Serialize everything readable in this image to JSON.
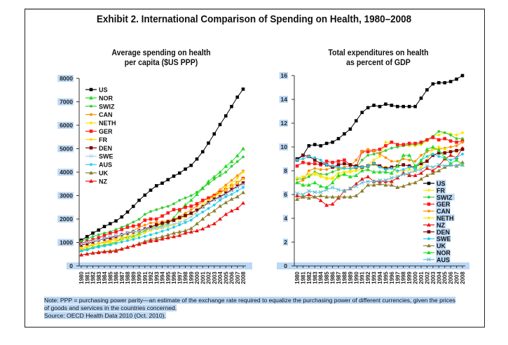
{
  "title": "Exhibit 2. International Comparison of Spending on Health, 1980–2008",
  "note_lines": [
    "Note: PPP = purchasing power parity—an estimate of the exchange rate required to equalize the purchasing power of different currencies, given the prices",
    "of goods and services in the countries concerned.",
    "Source: OECD Health Data 2010 (Oct. 2010)."
  ],
  "chart_data": [
    {
      "type": "line",
      "title": "Average spending on health per capita ($US PPP)",
      "title_lines": [
        "Average spending on health",
        "per capita ($US PPP)"
      ],
      "xlabel": "",
      "ylabel": "",
      "ylim": [
        0,
        8000
      ],
      "yticks": [
        "0",
        "1000",
        "2000",
        "3000",
        "4000",
        "5000",
        "6000",
        "7000",
        "8000"
      ],
      "x": [
        "1980",
        "1981",
        "1982",
        "1983",
        "1984",
        "1985",
        "1986",
        "1987",
        "1988",
        "1989",
        "1990",
        "1991",
        "1992",
        "1993",
        "1994",
        "1995",
        "1996",
        "1997",
        "1998",
        "1999",
        "2000",
        "2001",
        "2002",
        "2003",
        "2004",
        "2005",
        "2006",
        "2007",
        "2008"
      ],
      "legend_position": "top-left",
      "series": [
        {
          "name": "US",
          "color": "#000000",
          "marker": "square",
          "values": [
            1100,
            1250,
            1400,
            1530,
            1680,
            1800,
            1920,
            2090,
            2300,
            2540,
            2800,
            3020,
            3230,
            3420,
            3530,
            3680,
            3830,
            3960,
            4130,
            4290,
            4560,
            4870,
            5240,
            5630,
            6030,
            6400,
            6800,
            7200,
            7540
          ]
        },
        {
          "name": "NOR",
          "color": "#22dd22",
          "marker": "triangle",
          "values": [
            660,
            720,
            800,
            860,
            900,
            940,
            1030,
            1180,
            1230,
            1260,
            1370,
            1500,
            1600,
            1650,
            1700,
            1800,
            2050,
            2350,
            2600,
            2800,
            3050,
            3300,
            3600,
            3800,
            4000,
            4250,
            4450,
            4700,
            5000
          ]
        },
        {
          "name": "SWIZ",
          "color": "#33cc33",
          "marker": "circle",
          "values": [
            1050,
            1150,
            1250,
            1330,
            1400,
            1460,
            1550,
            1650,
            1750,
            1870,
            1990,
            2200,
            2320,
            2400,
            2480,
            2540,
            2650,
            2800,
            2900,
            3000,
            3140,
            3330,
            3500,
            3700,
            3850,
            4000,
            4250,
            4450,
            4650
          ]
        },
        {
          "name": "CAN",
          "color": "#ff8c00",
          "marker": "circle",
          "values": [
            720,
            800,
            900,
            960,
            1020,
            1100,
            1200,
            1300,
            1400,
            1500,
            1650,
            1740,
            1830,
            1860,
            1890,
            1930,
            2000,
            2100,
            2250,
            2400,
            2550,
            2750,
            2900,
            3050,
            3250,
            3450,
            3650,
            3850,
            4050
          ]
        },
        {
          "name": "NETH",
          "color": "#f7e600",
          "marker": "circle",
          "values": [
            790,
            860,
            920,
            950,
            980,
            1000,
            1030,
            1100,
            1150,
            1200,
            1300,
            1420,
            1520,
            1580,
            1620,
            1680,
            1760,
            1850,
            1950,
            2100,
            2330,
            2550,
            2800,
            3050,
            3200,
            3350,
            3500,
            3750,
            4000
          ]
        },
        {
          "name": "GER",
          "color": "#ff1a1a",
          "marker": "square",
          "values": [
            960,
            1050,
            1120,
            1200,
            1300,
            1400,
            1450,
            1550,
            1650,
            1700,
            1750,
            1950,
            2000,
            2000,
            2130,
            2260,
            2400,
            2400,
            2500,
            2550,
            2650,
            2800,
            2900,
            3000,
            3150,
            3250,
            3400,
            3550,
            3730
          ]
        },
        {
          "name": "FR",
          "color": "#ffd700",
          "marker": "circle",
          "values": [
            700,
            800,
            880,
            950,
            1000,
            1060,
            1120,
            1200,
            1260,
            1350,
            1450,
            1550,
            1650,
            1720,
            1780,
            1880,
            1960,
            2000,
            2100,
            2250,
            2400,
            2600,
            2800,
            2950,
            3100,
            3250,
            3400,
            3550,
            3700
          ]
        },
        {
          "name": "DEN",
          "color": "#7a0000",
          "marker": "square",
          "values": [
            890,
            950,
            1020,
            1100,
            1150,
            1200,
            1260,
            1340,
            1400,
            1450,
            1500,
            1580,
            1660,
            1750,
            1820,
            1880,
            1950,
            2060,
            2150,
            2250,
            2380,
            2520,
            2700,
            2850,
            2950,
            3100,
            3250,
            3400,
            3540
          ]
        },
        {
          "name": "SWE",
          "color": "#a8d0f0",
          "marker": "x",
          "values": [
            930,
            1000,
            1060,
            1100,
            1180,
            1250,
            1280,
            1340,
            1420,
            1460,
            1490,
            1560,
            1580,
            1620,
            1650,
            1720,
            1800,
            1850,
            1950,
            2100,
            2280,
            2500,
            2670,
            2800,
            2900,
            3050,
            3200,
            3350,
            3470
          ]
        },
        {
          "name": "AUS",
          "color": "#22ccee",
          "marker": "circle",
          "values": [
            640,
            680,
            760,
            800,
            850,
            900,
            960,
            1020,
            1080,
            1130,
            1200,
            1260,
            1330,
            1400,
            1480,
            1550,
            1650,
            1750,
            1850,
            1950,
            2150,
            2300,
            2450,
            2600,
            2800,
            2950,
            3050,
            3200,
            3350
          ]
        },
        {
          "name": "UK",
          "color": "#8b7d2b",
          "marker": "triangle",
          "values": [
            470,
            510,
            550,
            590,
            620,
            640,
            680,
            730,
            790,
            860,
            960,
            1050,
            1130,
            1180,
            1250,
            1320,
            1400,
            1450,
            1500,
            1600,
            1800,
            2000,
            2200,
            2350,
            2550,
            2700,
            2850,
            2950,
            3130
          ]
        },
        {
          "name": "NZ",
          "color": "#ee1111",
          "marker": "triangle",
          "values": [
            470,
            510,
            550,
            570,
            600,
            610,
            630,
            720,
            800,
            860,
            920,
            990,
            1060,
            1080,
            1150,
            1200,
            1250,
            1300,
            1400,
            1450,
            1500,
            1580,
            1700,
            1800,
            2000,
            2200,
            2350,
            2450,
            2680
          ]
        }
      ]
    },
    {
      "type": "line",
      "title": "Total expenditures on health as percent of GDP",
      "title_lines": [
        "Total expenditures on health",
        "as percent of GDP"
      ],
      "xlabel": "",
      "ylabel": "",
      "ylim": [
        0,
        16
      ],
      "yticks": [
        "0",
        "2",
        "4",
        "6",
        "8",
        "10",
        "12",
        "14",
        "16"
      ],
      "x": [
        "1980",
        "1981",
        "1982",
        "1983",
        "1984",
        "1985",
        "1986",
        "1987",
        "1988",
        "1989",
        "1990",
        "1991",
        "1992",
        "1993",
        "1994",
        "1995",
        "1996",
        "1997",
        "1998",
        "1999",
        "2000",
        "2001",
        "2002",
        "2003",
        "2004",
        "2005",
        "2006",
        "2007",
        "2008"
      ],
      "legend_position": "bottom-right",
      "series": [
        {
          "name": "US",
          "color": "#000000",
          "marker": "square",
          "values": [
            9.0,
            9.3,
            10.1,
            10.2,
            10.1,
            10.3,
            10.4,
            10.7,
            11.1,
            11.5,
            12.2,
            12.9,
            13.3,
            13.5,
            13.4,
            13.6,
            13.5,
            13.4,
            13.4,
            13.4,
            13.4,
            14.1,
            14.8,
            15.3,
            15.4,
            15.4,
            15.5,
            15.7,
            16.0
          ]
        },
        {
          "name": "FR",
          "color": "#ffe600",
          "marker": "circle",
          "values": [
            7.0,
            7.2,
            7.5,
            7.7,
            7.5,
            7.3,
            7.3,
            7.4,
            7.8,
            7.9,
            8.0,
            8.2,
            8.5,
            8.9,
            9.2,
            10.4,
            10.4,
            10.2,
            10.1,
            10.1,
            10.1,
            10.2,
            10.5,
            10.9,
            11.0,
            11.2,
            11.1,
            11.0,
            11.2
          ]
        },
        {
          "name": "SWIZ",
          "color": "#33cc33",
          "marker": "circle",
          "values": [
            7.3,
            7.3,
            7.5,
            7.9,
            7.7,
            7.7,
            7.9,
            8.1,
            8.2,
            8.2,
            8.2,
            8.9,
            9.3,
            9.4,
            9.5,
            9.7,
            9.9,
            10.0,
            10.1,
            10.2,
            10.2,
            10.3,
            10.6,
            10.9,
            11.3,
            11.2,
            11.0,
            10.7,
            10.7
          ]
        },
        {
          "name": "GER",
          "color": "#ff1a1a",
          "marker": "square",
          "values": [
            8.4,
            8.7,
            8.6,
            8.6,
            8.5,
            8.8,
            8.7,
            8.8,
            8.9,
            8.5,
            8.3,
            9.6,
            9.6,
            9.7,
            9.8,
            10.1,
            10.4,
            10.2,
            10.2,
            10.3,
            10.3,
            10.4,
            10.6,
            10.8,
            10.6,
            10.7,
            10.5,
            10.4,
            10.5
          ]
        },
        {
          "name": "CAN",
          "color": "#ff8c00",
          "marker": "circle",
          "values": [
            7.0,
            7.2,
            8.0,
            8.2,
            8.1,
            8.1,
            8.3,
            8.2,
            8.3,
            8.4,
            8.9,
            9.6,
            9.8,
            9.7,
            9.4,
            9.1,
            8.8,
            8.8,
            9.0,
            8.9,
            8.8,
            9.3,
            9.6,
            9.8,
            9.8,
            9.9,
            10.0,
            10.1,
            10.4
          ]
        },
        {
          "name": "NETH",
          "color": "#f7e600",
          "marker": "circle",
          "values": [
            7.4,
            7.5,
            7.7,
            7.8,
            7.6,
            7.4,
            7.4,
            7.8,
            7.9,
            8.0,
            8.0,
            8.2,
            8.4,
            8.5,
            8.3,
            8.3,
            8.2,
            7.9,
            8.0,
            8.1,
            8.0,
            8.3,
            8.9,
            9.8,
            10.0,
            9.8,
            9.6,
            9.6,
            9.9
          ]
        },
        {
          "name": "NZ",
          "color": "#ee1111",
          "marker": "triangle",
          "values": [
            5.9,
            5.8,
            6.0,
            5.8,
            5.5,
            5.1,
            5.2,
            5.7,
            6.3,
            6.5,
            6.9,
            7.3,
            7.5,
            7.1,
            7.1,
            7.1,
            7.1,
            7.4,
            7.8,
            7.6,
            7.6,
            7.8,
            8.2,
            8.0,
            8.4,
            9.0,
            9.3,
            9.1,
            9.9
          ]
        },
        {
          "name": "DEN",
          "color": "#7a0000",
          "marker": "square",
          "values": [
            8.9,
            9.3,
            9.2,
            8.9,
            8.6,
            8.5,
            8.3,
            8.5,
            8.6,
            8.5,
            8.4,
            8.3,
            8.4,
            8.6,
            8.4,
            8.2,
            8.3,
            8.4,
            8.5,
            8.4,
            8.3,
            8.6,
            8.8,
            9.3,
            9.5,
            9.5,
            9.6,
            9.7,
            9.8
          ]
        },
        {
          "name": "SWE",
          "color": "#22ccee",
          "marker": "circle",
          "values": [
            8.9,
            9.0,
            9.2,
            9.1,
            8.9,
            8.5,
            8.4,
            8.3,
            8.2,
            8.2,
            8.3,
            8.3,
            8.4,
            8.6,
            8.3,
            8.1,
            8.2,
            8.0,
            8.1,
            8.3,
            8.2,
            8.9,
            9.2,
            9.4,
            9.2,
            9.1,
            8.9,
            9.1,
            9.4
          ]
        },
        {
          "name": "UK",
          "color": "#8b7d2b",
          "marker": "triangle",
          "values": [
            5.6,
            5.8,
            5.7,
            5.8,
            5.9,
            5.8,
            5.8,
            5.8,
            5.8,
            5.8,
            5.9,
            6.3,
            6.8,
            6.8,
            6.9,
            6.8,
            6.8,
            6.6,
            6.7,
            6.9,
            7.0,
            7.3,
            7.6,
            7.8,
            8.0,
            8.3,
            8.5,
            8.4,
            8.7
          ]
        },
        {
          "name": "NOR",
          "color": "#22dd22",
          "marker": "triangle",
          "values": [
            7.0,
            6.8,
            6.8,
            7.0,
            6.7,
            6.6,
            7.0,
            7.6,
            7.7,
            7.5,
            7.6,
            8.0,
            8.1,
            7.9,
            7.9,
            7.9,
            7.8,
            8.4,
            9.3,
            9.3,
            8.4,
            8.8,
            9.8,
            10.0,
            9.7,
            9.1,
            8.6,
            8.9,
            8.5
          ]
        },
        {
          "name": "AUS",
          "color": "#5bbfcf",
          "marker": "x",
          "values": [
            6.1,
            6.0,
            6.3,
            6.2,
            6.2,
            6.4,
            6.6,
            6.4,
            6.3,
            6.5,
            6.7,
            7.0,
            7.1,
            7.1,
            7.2,
            7.2,
            7.4,
            7.5,
            7.7,
            7.8,
            8.0,
            8.1,
            8.4,
            8.3,
            8.5,
            8.4,
            8.5,
            8.4,
            8.5
          ]
        }
      ]
    }
  ]
}
